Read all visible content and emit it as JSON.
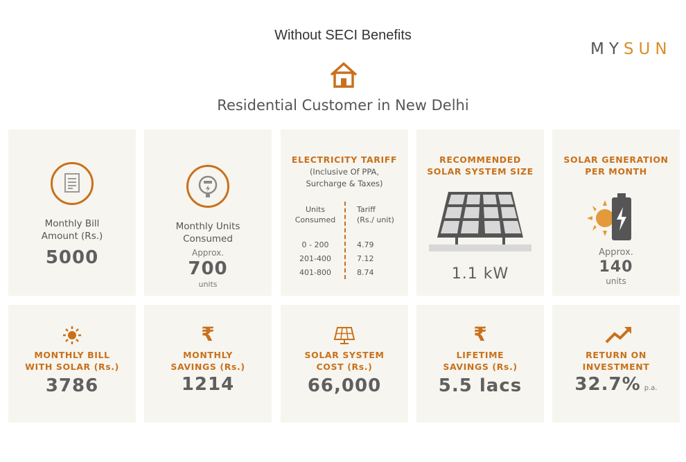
{
  "header": {
    "title": "Without SECI Benefits",
    "brand_part1": "MY",
    "brand_part2": "SUN",
    "subtitle": "Residential Customer in New Delhi"
  },
  "colors": {
    "accent": "#c9701c",
    "card_bg": "#f6f5ef",
    "text_dark": "#5f5f5f"
  },
  "cards_top": {
    "monthly_bill": {
      "icon": "bill-icon",
      "label_line1": "Monthly Bill",
      "label_line2": "Amount (Rs.)",
      "value": "5000"
    },
    "monthly_units": {
      "icon": "meter-icon",
      "label_line1": "Monthly Units",
      "label_line2": "Consumed",
      "approx": "Approx.",
      "value": "700",
      "unit": "units"
    },
    "tariff": {
      "title": "ELECTRICITY TARIFF",
      "note_line1": "(Inclusive Of PPA,",
      "note_line2": "Surcharge & Taxes)",
      "col1_line1": "Units",
      "col1_line2": "Consumed",
      "col2_line1": "Tariff",
      "col2_line2": "(Rs./ unit)",
      "rows": [
        {
          "range": "0 - 200",
          "rate": "4.79"
        },
        {
          "range": "201-400",
          "rate": "7.12"
        },
        {
          "range": "401-800",
          "rate": "8.74"
        }
      ]
    },
    "system_size": {
      "icon": "solar-panel-icon",
      "title_line1": "RECOMMENDED",
      "title_line2": "SOLAR SYSTEM SIZE",
      "value": "1.1 kW"
    },
    "generation": {
      "icon": "sun-battery-icon",
      "title_line1": "SOLAR GENERATION",
      "title_line2": "PER MONTH",
      "approx": "Approx.",
      "value": "140",
      "unit": "units"
    }
  },
  "cards_bottom": {
    "bill_with_solar": {
      "icon": "sun-icon",
      "title_line1": "MONTHLY BILL",
      "title_line2": "WITH SOLAR (Rs.)",
      "value": "3786"
    },
    "monthly_savings": {
      "icon": "rupee-icon",
      "title_line1": "MONTHLY",
      "title_line2": "SAVINGS (Rs.)",
      "value": "1214"
    },
    "system_cost": {
      "icon": "small-panel-icon",
      "title_line1": "SOLAR SYSTEM",
      "title_line2": "COST (Rs.)",
      "value": "66,000"
    },
    "lifetime_savings": {
      "icon": "rupee-icon",
      "title_line1": "LIFETIME",
      "title_line2": "SAVINGS (Rs.)",
      "value": "5.5 lacs"
    },
    "roi": {
      "icon": "trend-up-icon",
      "title_line1": "RETURN ON",
      "title_line2": "INVESTMENT",
      "value": "32.7%",
      "suffix": "p.a."
    }
  }
}
